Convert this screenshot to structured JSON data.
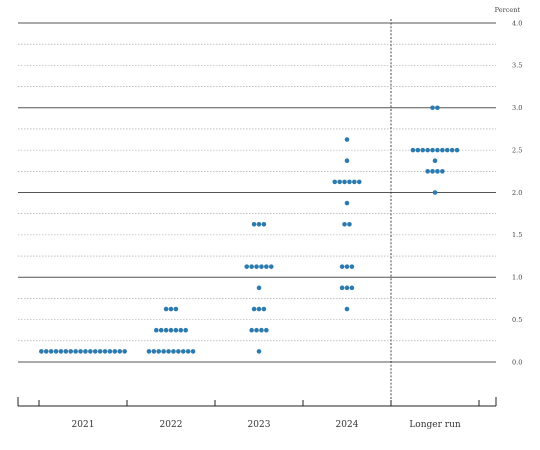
{
  "chart_data": {
    "type": "scatter",
    "unit_label": "Percent",
    "categories": [
      "2021",
      "2022",
      "2023",
      "2024",
      "Longer run"
    ],
    "ylim": [
      0,
      4.0
    ],
    "yticks": [
      "0.0",
      "0.5",
      "1.0",
      "1.5",
      "2.0",
      "2.5",
      "3.0",
      "3.5",
      "4.0"
    ],
    "grid": true,
    "dot_color": "#2b7bb0",
    "points": [
      {
        "category": "2021",
        "y": 0.125,
        "count": 18
      },
      {
        "category": "2022",
        "y": 0.125,
        "count": 10
      },
      {
        "category": "2022",
        "y": 0.375,
        "count": 7
      },
      {
        "category": "2022",
        "y": 0.625,
        "count": 3
      },
      {
        "category": "2023",
        "y": 0.125,
        "count": 1
      },
      {
        "category": "2023",
        "y": 0.375,
        "count": 4
      },
      {
        "category": "2023",
        "y": 0.625,
        "count": 3
      },
      {
        "category": "2023",
        "y": 0.875,
        "count": 1
      },
      {
        "category": "2023",
        "y": 1.125,
        "count": 6
      },
      {
        "category": "2023",
        "y": 1.625,
        "count": 3
      },
      {
        "category": "2024",
        "y": 0.625,
        "count": 1
      },
      {
        "category": "2024",
        "y": 0.875,
        "count": 3
      },
      {
        "category": "2024",
        "y": 1.125,
        "count": 3
      },
      {
        "category": "2024",
        "y": 1.625,
        "count": 2
      },
      {
        "category": "2024",
        "y": 1.875,
        "count": 1
      },
      {
        "category": "2024",
        "y": 2.125,
        "count": 6
      },
      {
        "category": "2024",
        "y": 2.375,
        "count": 1
      },
      {
        "category": "2024",
        "y": 2.625,
        "count": 1
      },
      {
        "category": "Longer run",
        "y": 2.0,
        "count": 1
      },
      {
        "category": "Longer run",
        "y": 2.25,
        "count": 4
      },
      {
        "category": "Longer run",
        "y": 2.375,
        "count": 1
      },
      {
        "category": "Longer run",
        "y": 2.5,
        "count": 10
      },
      {
        "category": "Longer run",
        "y": 3.0,
        "count": 2
      }
    ]
  }
}
